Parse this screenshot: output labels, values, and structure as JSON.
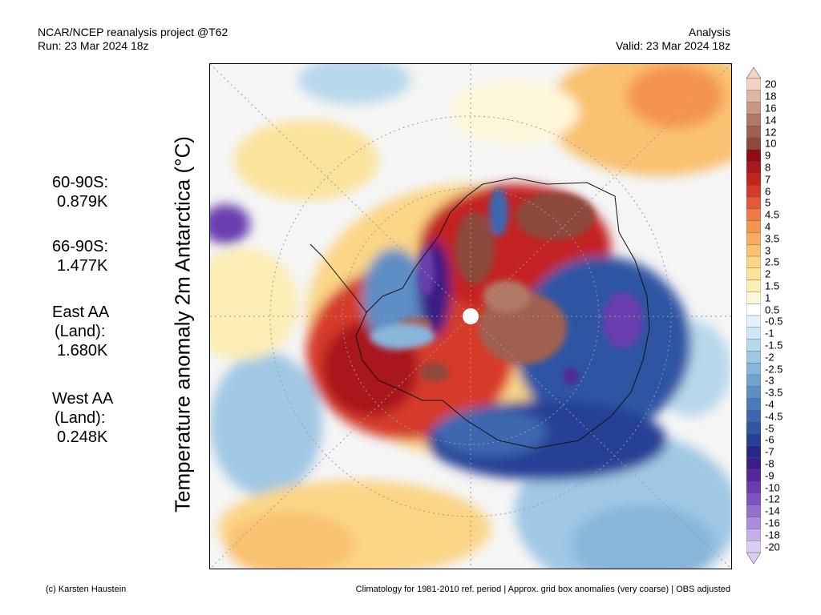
{
  "header": {
    "left_line1": "NCAR/NCEP reanalysis project @T62",
    "left_line2": "Run: 23 Mar 2024 18z",
    "right_line1": "Analysis",
    "right_line2": "Valid: 23 Mar 2024 18z"
  },
  "y_label": "Temperature anomaly 2m Antarctica (°C)",
  "stats": [
    {
      "lines": [
        "60-90S:",
        "0.879K"
      ]
    },
    {
      "lines": [
        "66-90S:",
        "1.477K"
      ]
    },
    {
      "lines": [
        "East AA",
        "(Land):",
        "1.680K"
      ]
    },
    {
      "lines": [
        "West AA",
        "(Land):",
        "0.248K"
      ]
    }
  ],
  "colorbar": {
    "labels": [
      "20",
      "18",
      "16",
      "14",
      "12",
      "10",
      "9",
      "8",
      "7",
      "6",
      "5",
      "4.5",
      "4",
      "3.5",
      "3",
      "2.5",
      "2",
      "1.5",
      "1",
      "0.5",
      "-0.5",
      "-1",
      "-1.5",
      "-2",
      "-2.5",
      "-3",
      "-3.5",
      "-4",
      "-4.5",
      "-5",
      "-6",
      "-7",
      "-8",
      "-9",
      "-10",
      "-12",
      "-14",
      "-16",
      "-18",
      "-20"
    ],
    "colors": [
      "#f3d3c3",
      "#deb4a2",
      "#c99584",
      "#b27866",
      "#a06050",
      "#8c4a3a",
      "#8e0d12",
      "#a9181b",
      "#c42420",
      "#d63a2c",
      "#e45a38",
      "#ee7a42",
      "#f49450",
      "#f7ab5e",
      "#f9c170",
      "#fad586",
      "#fbe39c",
      "#fcedb4",
      "#fef6d8",
      "#ffffff",
      "#e4f1fa",
      "#cfe6f4",
      "#b8d8ec",
      "#a0c8e4",
      "#88b6da",
      "#73a3cf",
      "#5d8ec5",
      "#4c7bbb",
      "#3c67b0",
      "#2f55a4",
      "#273f95",
      "#25278a",
      "#3a1d85",
      "#52279a",
      "#6a3cb0",
      "#7f54c2",
      "#9470d0",
      "#aa8dde",
      "#c3aee9",
      "#dccdf3"
    ]
  },
  "footer": {
    "left": "(c) Karsten Haustein",
    "right": "Climatology for 1981-2010 ref. period | Approx. grid box anomalies (very coarse) | OBS adjusted"
  }
}
